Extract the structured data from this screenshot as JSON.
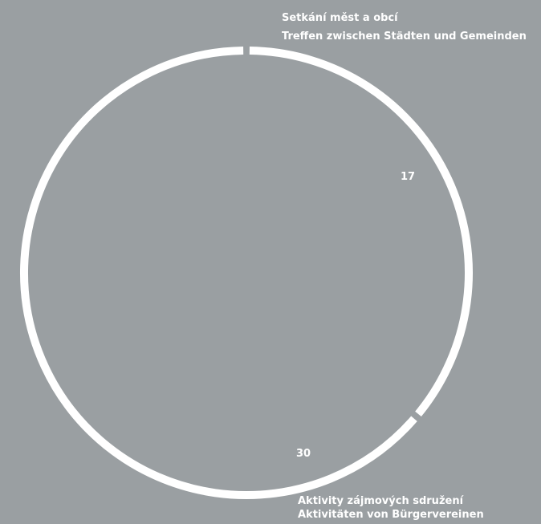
{
  "chart_data": {
    "type": "pie",
    "style": "ring",
    "background_color": "#9a9fa2",
    "ring_color": "#ffffff",
    "slices": [
      {
        "value": 17,
        "value_label": "17",
        "label_cs": "Setkání měst a obcí",
        "label_de": "Treffen zwischen Städten und Gemeinden"
      },
      {
        "value": 30,
        "value_label": "30",
        "label_cs": "Aktivity zájmových sdružení",
        "label_de": "Aktivitäten von Bürgervereinen"
      }
    ]
  }
}
